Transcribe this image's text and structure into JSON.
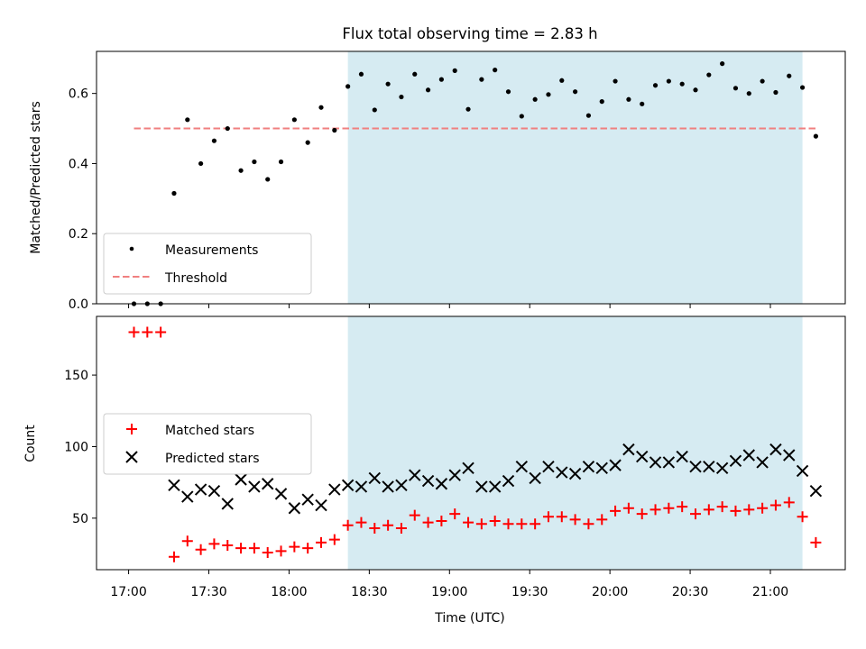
{
  "chart_data": [
    {
      "type": "scatter",
      "title": "Flux total observing time = 2.83 h",
      "xlabel": "",
      "ylabel": "Matched/Predicted stars",
      "xlim_minutes": [
        1008,
        1288
      ],
      "ylim": [
        0,
        0.72
      ],
      "yticks": [
        0.0,
        0.2,
        0.4,
        0.6
      ],
      "ytick_labels": [
        "0.0",
        "0.2",
        "0.4",
        "0.6"
      ],
      "legend_position": "lower-left",
      "shaded_span": [
        "18:22",
        "21:12"
      ],
      "shade_color": "#add8e6",
      "series": [
        {
          "name": "Measurements",
          "marker": "dot",
          "color": "#000000",
          "x": [
            "17:02",
            "17:07",
            "17:12",
            "17:17",
            "17:22",
            "17:27",
            "17:32",
            "17:37",
            "17:42",
            "17:47",
            "17:52",
            "17:57",
            "18:02",
            "18:07",
            "18:12",
            "18:17",
            "18:22",
            "18:27",
            "18:32",
            "18:37",
            "18:42",
            "18:47",
            "18:52",
            "18:57",
            "19:02",
            "19:07",
            "19:12",
            "19:17",
            "19:22",
            "19:27",
            "19:32",
            "19:37",
            "19:42",
            "19:47",
            "19:52",
            "19:57",
            "20:02",
            "20:07",
            "20:12",
            "20:17",
            "20:22",
            "20:27",
            "20:32",
            "20:37",
            "20:42",
            "20:47",
            "20:52",
            "20:57",
            "21:02",
            "21:07",
            "21:12",
            "21:17"
          ],
          "y": [
            0.0,
            0.0,
            0.0,
            0.315,
            0.525,
            0.4,
            0.465,
            0.5,
            0.38,
            0.405,
            0.355,
            0.405,
            0.525,
            0.46,
            0.56,
            0.495,
            0.62,
            0.655,
            0.553,
            0.627,
            0.59,
            0.655,
            0.61,
            0.64,
            0.665,
            0.555,
            0.64,
            0.667,
            0.605,
            0.535,
            0.583,
            0.597,
            0.637,
            0.605,
            0.537,
            0.577,
            0.635,
            0.583,
            0.57,
            0.623,
            0.635,
            0.627,
            0.61,
            0.653,
            0.685,
            0.615,
            0.6,
            0.635,
            0.603,
            0.65,
            0.617,
            0.478
          ]
        },
        {
          "name": "Threshold",
          "type": "line",
          "style": "dashed",
          "color": "#f08080",
          "x": [
            "17:02",
            "21:17"
          ],
          "y": [
            0.5,
            0.5
          ]
        }
      ]
    },
    {
      "type": "scatter",
      "title": "",
      "xlabel": "Time (UTC)",
      "ylabel": "Count",
      "xlim_minutes": [
        1008,
        1288
      ],
      "ylim": [
        14,
        191
      ],
      "yticks": [
        50,
        100,
        150
      ],
      "ytick_labels": [
        "50",
        "100",
        "150"
      ],
      "xticks": [
        "17:00",
        "17:30",
        "18:00",
        "18:30",
        "19:00",
        "19:30",
        "20:00",
        "20:30",
        "21:00"
      ],
      "legend_position": "center-left",
      "shaded_span": [
        "18:22",
        "21:12"
      ],
      "shade_color": "#add8e6",
      "series": [
        {
          "name": "Matched stars",
          "marker": "plus",
          "color": "#ff0000",
          "x": [
            "17:02",
            "17:07",
            "17:12",
            "17:17",
            "17:22",
            "17:27",
            "17:32",
            "17:37",
            "17:42",
            "17:47",
            "17:52",
            "17:57",
            "18:02",
            "18:07",
            "18:12",
            "18:17",
            "18:22",
            "18:27",
            "18:32",
            "18:37",
            "18:42",
            "18:47",
            "18:52",
            "18:57",
            "19:02",
            "19:07",
            "19:12",
            "19:17",
            "19:22",
            "19:27",
            "19:32",
            "19:37",
            "19:42",
            "19:47",
            "19:52",
            "19:57",
            "20:02",
            "20:07",
            "20:12",
            "20:17",
            "20:22",
            "20:27",
            "20:32",
            "20:37",
            "20:42",
            "20:47",
            "20:52",
            "20:57",
            "21:02",
            "21:07",
            "21:12",
            "21:17"
          ],
          "y": [
            180,
            180,
            180,
            23,
            34,
            28,
            32,
            31,
            29,
            29,
            26,
            27,
            30,
            29,
            33,
            35,
            45,
            47,
            43,
            45,
            43,
            52,
            47,
            48,
            53,
            47,
            46,
            48,
            46,
            46,
            46,
            51,
            51,
            49,
            46,
            49,
            55,
            57,
            53,
            56,
            57,
            58,
            53,
            56,
            58,
            55,
            56,
            57,
            59,
            61,
            51,
            33
          ]
        },
        {
          "name": "Predicted stars",
          "marker": "x",
          "color": "#000000",
          "x": [
            "17:17",
            "17:22",
            "17:27",
            "17:32",
            "17:37",
            "17:42",
            "17:47",
            "17:52",
            "17:57",
            "18:02",
            "18:07",
            "18:12",
            "18:17",
            "18:22",
            "18:27",
            "18:32",
            "18:37",
            "18:42",
            "18:47",
            "18:52",
            "18:57",
            "19:02",
            "19:07",
            "19:12",
            "19:17",
            "19:22",
            "19:27",
            "19:32",
            "19:37",
            "19:42",
            "19:47",
            "19:52",
            "19:57",
            "20:02",
            "20:07",
            "20:12",
            "20:17",
            "20:22",
            "20:27",
            "20:32",
            "20:37",
            "20:42",
            "20:47",
            "20:52",
            "20:57",
            "21:02",
            "21:07",
            "21:12",
            "21:17"
          ],
          "y": [
            73,
            65,
            70,
            69,
            60,
            77,
            72,
            74,
            67,
            57,
            63,
            59,
            70,
            73,
            72,
            78,
            72,
            73,
            80,
            76,
            74,
            80,
            85,
            72,
            72,
            76,
            86,
            78,
            86,
            82,
            81,
            86,
            85,
            87,
            98,
            93,
            89,
            89,
            93,
            86,
            86,
            85,
            90,
            94,
            89,
            98,
            94,
            83,
            69
          ]
        }
      ]
    }
  ]
}
